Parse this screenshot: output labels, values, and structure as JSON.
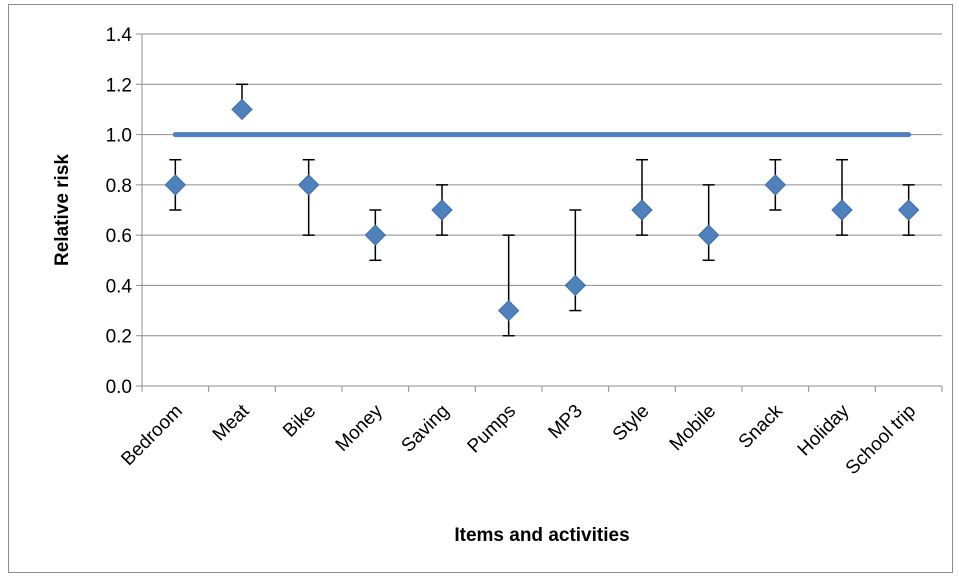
{
  "chart_data": {
    "type": "scatter",
    "title": "",
    "xlabel": "Items and activities",
    "ylabel": "Relative risk",
    "ylim": [
      0,
      1.4
    ],
    "ytick_step": 0.2,
    "grid": "horizontal",
    "legend": "none",
    "categories": [
      "Bedroom",
      "Meat",
      "Bike",
      "Money",
      "Saving",
      "Pumps",
      "MP3",
      "Style",
      "Mobile",
      "Snack",
      "Holiday",
      "School trip"
    ],
    "series": [
      {
        "values": [
          0.8,
          1.1,
          0.8,
          0.6,
          0.7,
          0.3,
          0.4,
          0.7,
          0.6,
          0.8,
          0.7,
          0.7
        ],
        "lower": [
          0.7,
          1.1,
          0.6,
          0.5,
          0.6,
          0.2,
          0.3,
          0.6,
          0.5,
          0.7,
          0.6,
          0.6
        ],
        "upper": [
          0.9,
          1.2,
          0.9,
          0.7,
          0.8,
          0.6,
          0.7,
          0.9,
          0.8,
          0.9,
          0.9,
          0.8
        ],
        "marker": "diamond",
        "color": "#4f81bd"
      }
    ],
    "reference_line": {
      "y": 1.0,
      "color": "#4f81bd"
    },
    "colors": {
      "grid": "#8c8c8c",
      "axis": "#8c8c8c",
      "error_bar": "#000000"
    }
  }
}
